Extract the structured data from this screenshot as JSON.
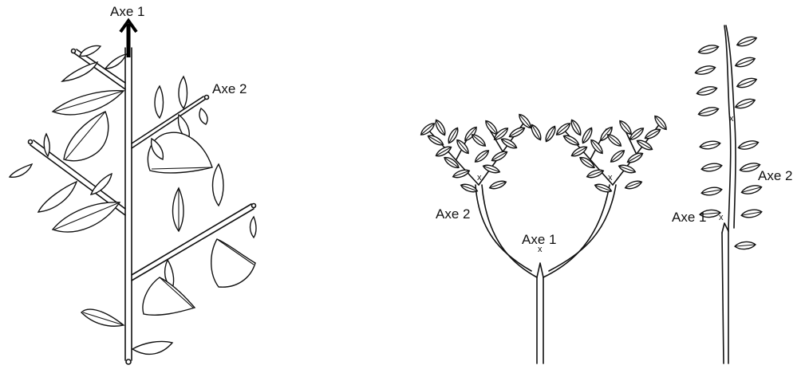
{
  "labels": {
    "fig1_axe1": "Axe 1",
    "fig1_axe2": "Axe 2",
    "fig2_axe2": "Axe 2",
    "fig2_axe1": "Axe 1",
    "fig3_axe1": "Axe 1",
    "fig3_axe2": "Axe 2"
  },
  "markers": {
    "apex_mark": "x"
  }
}
